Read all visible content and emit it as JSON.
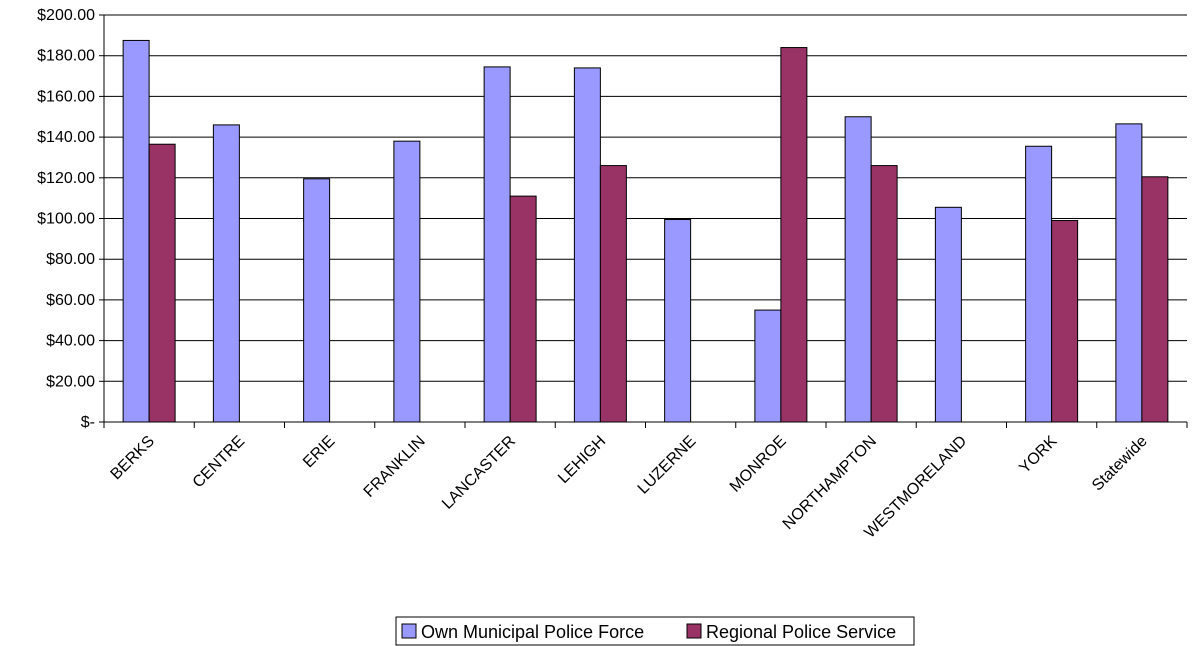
{
  "chart_data": {
    "type": "bar",
    "title": "",
    "xlabel": "",
    "ylabel": "",
    "categories": [
      "BERKS",
      "CENTRE",
      "ERIE",
      "FRANKLIN",
      "LANCASTER",
      "LEHIGH",
      "LUZERNE",
      "MONROE",
      "NORTHAMPTON",
      "WESTMORELAND",
      "YORK",
      "Statewide"
    ],
    "series": [
      {
        "name": "Own Municipal Police Force",
        "color": "#9999FF",
        "values": [
          187.5,
          146,
          119.5,
          138,
          174.5,
          174,
          99.5,
          55,
          150,
          105.5,
          135.5,
          146.5
        ]
      },
      {
        "name": "Regional Police Service",
        "color": "#993366",
        "values": [
          136.5,
          null,
          null,
          null,
          111,
          126,
          null,
          184,
          126,
          null,
          99,
          120.5
        ]
      }
    ],
    "ylim": [
      0,
      200
    ],
    "ytick_step": 20,
    "ytick_labels": [
      "$-",
      "$20.00",
      "$40.00",
      "$60.00",
      "$80.00",
      "$100.00",
      "$120.00",
      "$140.00",
      "$160.00",
      "$180.00",
      "$200.00"
    ],
    "grid": true,
    "legend_position": "bottom"
  }
}
